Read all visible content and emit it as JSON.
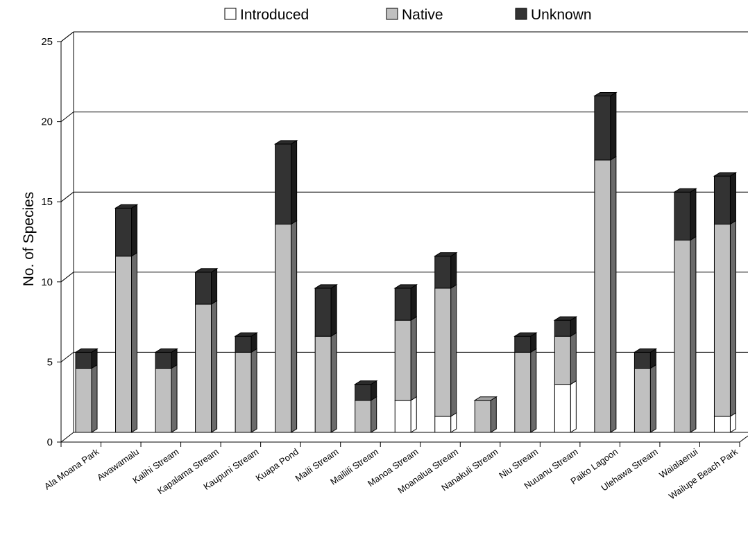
{
  "chart_data": {
    "type": "bar",
    "stacked": true,
    "three_d": true,
    "categories": [
      "Ala Moana Park",
      "Awawamalu",
      "Kalihi Stream",
      "Kapalama Stream",
      "Kaupuni Stream",
      "Kuapa Pond",
      "Maili Stream",
      "Mailiili Stream",
      "Manoa Stream",
      "Moanalua Stream",
      "Nanakuli Stream",
      "Niu Stream",
      "Nuuanu Stream",
      "Paiko Lagoon",
      "Ulehawa Stream",
      "Waialaenui",
      "Wailupe Beach Park"
    ],
    "series": [
      {
        "name": "Introduced",
        "color": "#ffffff",
        "values": [
          0,
          0,
          0,
          0,
          0,
          0,
          0,
          0,
          2,
          1,
          0,
          0,
          3,
          0,
          0,
          0,
          1
        ]
      },
      {
        "name": "Native",
        "color": "#c0c0c0",
        "values": [
          4,
          11,
          4,
          8,
          5,
          13,
          6,
          2,
          5,
          8,
          2,
          5,
          3,
          17,
          4,
          12,
          12
        ]
      },
      {
        "name": "Unknown",
        "color": "#333333",
        "values": [
          1,
          3,
          1,
          2,
          1,
          5,
          3,
          1,
          2,
          2,
          0,
          1,
          1,
          4,
          1,
          3,
          3
        ]
      }
    ],
    "ylabel": "No. of Species",
    "xlabel": "",
    "ylim": [
      0,
      25
    ],
    "yticks": [
      0,
      5,
      10,
      15,
      20,
      25
    ],
    "grid": true,
    "legend_position": "top"
  }
}
